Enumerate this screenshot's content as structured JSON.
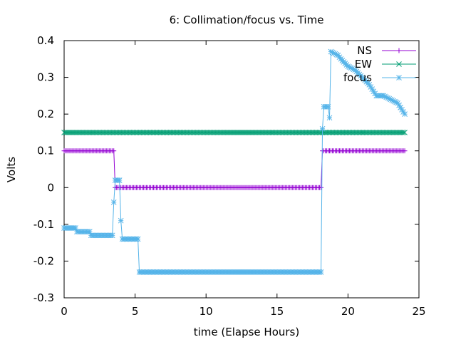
{
  "chart_data": {
    "type": "line",
    "title": "6: Collimation/focus vs. Time",
    "xlabel": "time (Elapse Hours)",
    "ylabel": "Volts",
    "xlim": [
      0,
      25
    ],
    "ylim": [
      -0.3,
      0.4
    ],
    "xticks": [
      0,
      5,
      10,
      15,
      20,
      25
    ],
    "yticks": [
      -0.3,
      -0.2,
      -0.1,
      0,
      0.1,
      0.2,
      0.3,
      0.4
    ],
    "xtick_labels": [
      "0",
      "5",
      "10",
      "15",
      "20",
      "25"
    ],
    "ytick_labels": [
      "-0.3",
      "-0.2",
      "-0.1",
      "0",
      "0.1",
      "0.2",
      "0.3",
      "0.4"
    ],
    "grid": false,
    "legend_position": "top-right",
    "series": [
      {
        "name": "NS",
        "color": "#9400d3",
        "marker": "plus",
        "x": [
          0,
          3.5,
          3.6,
          18.1,
          18.2,
          24
        ],
        "y": [
          0.1,
          0.1,
          0.0,
          0.0,
          0.1,
          0.1
        ]
      },
      {
        "name": "EW",
        "color": "#009e73",
        "marker": "cross",
        "x": [
          0,
          24
        ],
        "y": [
          0.15,
          0.15
        ]
      },
      {
        "name": "focus",
        "color": "#56b4e9",
        "marker": "star",
        "x": [
          0,
          0.8,
          0.9,
          1.8,
          1.9,
          3.4,
          3.5,
          3.6,
          3.9,
          4.0,
          4.1,
          5.2,
          5.3,
          18.1,
          18.2,
          18.3,
          18.6,
          18.7,
          18.8,
          19.3,
          19.5,
          20.0,
          20.5,
          21.0,
          21.5,
          22.0,
          22.5,
          23.0,
          23.5,
          24.0
        ],
        "y": [
          -0.11,
          -0.11,
          -0.12,
          -0.12,
          -0.13,
          -0.13,
          -0.04,
          0.02,
          0.02,
          -0.09,
          -0.14,
          -0.14,
          -0.23,
          -0.23,
          0.16,
          0.22,
          0.22,
          0.19,
          0.37,
          0.36,
          0.35,
          0.33,
          0.32,
          0.3,
          0.28,
          0.25,
          0.25,
          0.24,
          0.23,
          0.2
        ]
      }
    ]
  }
}
